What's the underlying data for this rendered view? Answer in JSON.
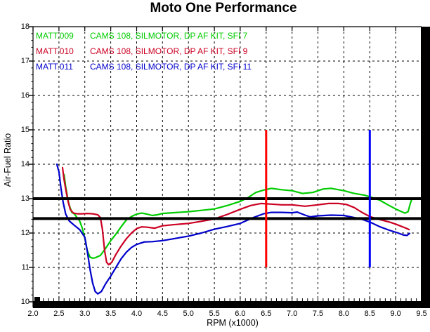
{
  "chart_data": {
    "type": "line",
    "title": "Moto One Performance",
    "xlabel": "RPM (x1000)",
    "ylabel": "Air-Fuel Ratio",
    "xlim": [
      2.0,
      9.5
    ],
    "ylim": [
      10,
      18
    ],
    "x_ticks": [
      "2.0",
      "2.5",
      "3.0",
      "3.5",
      "4.0",
      "4.5",
      "5.0",
      "5.5",
      "6.0",
      "6.5",
      "7.0",
      "7.5",
      "8.0",
      "8.5",
      "9.0",
      "9.5"
    ],
    "y_ticks": [
      "10",
      "11",
      "12",
      "13",
      "14",
      "15",
      "16",
      "17",
      "18"
    ],
    "grid": "dashed",
    "legend_position": "top-left-inside",
    "series": [
      {
        "name": "MATT.009",
        "desc": "CAMS 108, SILMOTOR, DP AF KIT, SFI 7",
        "color": "#00CC00",
        "points": [
          [
            2.6,
            13.7
          ],
          [
            2.63,
            13.35
          ],
          [
            2.67,
            13.0
          ],
          [
            2.7,
            12.8
          ],
          [
            2.75,
            12.6
          ],
          [
            2.8,
            12.55
          ],
          [
            2.85,
            12.45
          ],
          [
            2.9,
            12.35
          ],
          [
            2.95,
            12.15
          ],
          [
            3.0,
            11.85
          ],
          [
            3.05,
            11.48
          ],
          [
            3.1,
            11.3
          ],
          [
            3.15,
            11.27
          ],
          [
            3.2,
            11.28
          ],
          [
            3.3,
            11.35
          ],
          [
            3.4,
            11.55
          ],
          [
            3.5,
            11.78
          ],
          [
            3.6,
            11.97
          ],
          [
            3.7,
            12.18
          ],
          [
            3.8,
            12.38
          ],
          [
            3.9,
            12.48
          ],
          [
            4.0,
            12.55
          ],
          [
            4.1,
            12.58
          ],
          [
            4.2,
            12.55
          ],
          [
            4.3,
            12.51
          ],
          [
            4.4,
            12.53
          ],
          [
            4.5,
            12.57
          ],
          [
            4.7,
            12.59
          ],
          [
            5.0,
            12.62
          ],
          [
            5.25,
            12.66
          ],
          [
            5.5,
            12.7
          ],
          [
            5.75,
            12.8
          ],
          [
            6.0,
            12.92
          ],
          [
            6.15,
            13.03
          ],
          [
            6.3,
            13.18
          ],
          [
            6.45,
            13.25
          ],
          [
            6.6,
            13.3
          ],
          [
            6.8,
            13.26
          ],
          [
            7.0,
            13.23
          ],
          [
            7.2,
            13.15
          ],
          [
            7.4,
            13.18
          ],
          [
            7.6,
            13.28
          ],
          [
            7.75,
            13.3
          ],
          [
            7.9,
            13.26
          ],
          [
            8.0,
            13.23
          ],
          [
            8.2,
            13.15
          ],
          [
            8.4,
            13.1
          ],
          [
            8.55,
            13.03
          ],
          [
            8.7,
            12.95
          ],
          [
            8.85,
            12.82
          ],
          [
            9.0,
            12.7
          ],
          [
            9.1,
            12.63
          ],
          [
            9.18,
            12.58
          ],
          [
            9.24,
            12.62
          ],
          [
            9.28,
            12.85
          ],
          [
            9.32,
            13.02
          ]
        ]
      },
      {
        "name": "MATT.010",
        "desc": "CAMS 108, SILMOTOR, DP AF KIT, SFI 9",
        "color": "#CC0022",
        "points": [
          [
            2.57,
            13.9
          ],
          [
            2.6,
            13.55
          ],
          [
            2.64,
            13.2
          ],
          [
            2.68,
            12.9
          ],
          [
            2.72,
            12.68
          ],
          [
            2.78,
            12.58
          ],
          [
            2.85,
            12.56
          ],
          [
            2.95,
            12.56
          ],
          [
            3.05,
            12.57
          ],
          [
            3.15,
            12.56
          ],
          [
            3.25,
            12.53
          ],
          [
            3.3,
            12.45
          ],
          [
            3.34,
            12.1
          ],
          [
            3.38,
            11.5
          ],
          [
            3.42,
            11.15
          ],
          [
            3.46,
            11.08
          ],
          [
            3.52,
            11.15
          ],
          [
            3.6,
            11.38
          ],
          [
            3.7,
            11.62
          ],
          [
            3.8,
            11.83
          ],
          [
            3.9,
            12.0
          ],
          [
            4.0,
            12.13
          ],
          [
            4.1,
            12.18
          ],
          [
            4.2,
            12.17
          ],
          [
            4.35,
            12.14
          ],
          [
            4.5,
            12.21
          ],
          [
            4.7,
            12.24
          ],
          [
            5.0,
            12.28
          ],
          [
            5.25,
            12.34
          ],
          [
            5.5,
            12.41
          ],
          [
            5.75,
            12.54
          ],
          [
            6.0,
            12.69
          ],
          [
            6.2,
            12.8
          ],
          [
            6.4,
            12.86
          ],
          [
            6.6,
            12.84
          ],
          [
            6.8,
            12.82
          ],
          [
            7.0,
            12.82
          ],
          [
            7.25,
            12.78
          ],
          [
            7.5,
            12.82
          ],
          [
            7.7,
            12.86
          ],
          [
            7.9,
            12.86
          ],
          [
            8.05,
            12.83
          ],
          [
            8.2,
            12.74
          ],
          [
            8.35,
            12.6
          ],
          [
            8.5,
            12.48
          ],
          [
            8.7,
            12.39
          ],
          [
            8.9,
            12.31
          ],
          [
            9.0,
            12.26
          ],
          [
            9.1,
            12.2
          ],
          [
            9.2,
            12.14
          ],
          [
            9.26,
            12.1
          ]
        ]
      },
      {
        "name": "MATT.011",
        "desc": "CAMS 108, SILMOTOR, DP AF KIT, SFI 11",
        "color": "#0000CC",
        "points": [
          [
            2.46,
            14.0
          ],
          [
            2.5,
            13.78
          ],
          [
            2.54,
            13.3
          ],
          [
            2.58,
            12.9
          ],
          [
            2.63,
            12.55
          ],
          [
            2.7,
            12.35
          ],
          [
            2.8,
            12.22
          ],
          [
            2.9,
            12.1
          ],
          [
            3.0,
            11.88
          ],
          [
            3.05,
            11.45
          ],
          [
            3.1,
            10.95
          ],
          [
            3.15,
            10.55
          ],
          [
            3.2,
            10.3
          ],
          [
            3.25,
            10.23
          ],
          [
            3.32,
            10.3
          ],
          [
            3.4,
            10.52
          ],
          [
            3.5,
            10.75
          ],
          [
            3.6,
            11.0
          ],
          [
            3.7,
            11.25
          ],
          [
            3.8,
            11.44
          ],
          [
            3.9,
            11.58
          ],
          [
            4.0,
            11.67
          ],
          [
            4.15,
            11.74
          ],
          [
            4.3,
            11.75
          ],
          [
            4.5,
            11.78
          ],
          [
            4.7,
            11.83
          ],
          [
            5.0,
            11.91
          ],
          [
            5.25,
            12.0
          ],
          [
            5.5,
            12.11
          ],
          [
            5.75,
            12.19
          ],
          [
            6.0,
            12.28
          ],
          [
            6.25,
            12.45
          ],
          [
            6.45,
            12.56
          ],
          [
            6.6,
            12.6
          ],
          [
            6.8,
            12.6
          ],
          [
            7.0,
            12.59
          ],
          [
            7.1,
            12.61
          ],
          [
            7.25,
            12.52
          ],
          [
            7.35,
            12.47
          ],
          [
            7.5,
            12.5
          ],
          [
            7.75,
            12.52
          ],
          [
            8.0,
            12.51
          ],
          [
            8.2,
            12.45
          ],
          [
            8.35,
            12.4
          ],
          [
            8.5,
            12.32
          ],
          [
            8.7,
            12.18
          ],
          [
            8.9,
            12.07
          ],
          [
            9.05,
            12.0
          ],
          [
            9.15,
            11.94
          ],
          [
            9.22,
            11.93
          ],
          [
            9.27,
            11.99
          ]
        ]
      }
    ],
    "reference_lines": [
      {
        "axis": "y",
        "value": 13.0,
        "color": "#000000",
        "width": 4
      },
      {
        "axis": "y",
        "value": 12.42,
        "color": "#000000",
        "width": 4
      },
      {
        "axis": "x",
        "value": 6.5,
        "from": 11.0,
        "to": 15.0,
        "color": "#FF0000",
        "width": 3
      },
      {
        "axis": "x",
        "value": 8.5,
        "from": 11.0,
        "to": 15.0,
        "color": "#0000FF",
        "width": 3
      }
    ]
  }
}
